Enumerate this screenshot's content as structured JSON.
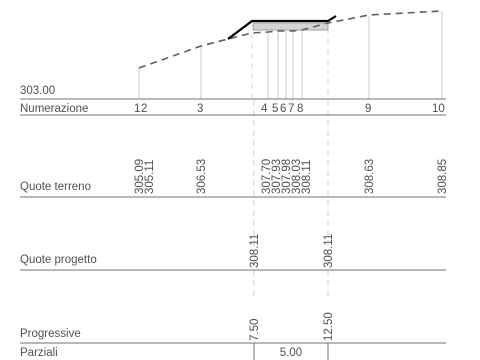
{
  "reference_elevation": "303.00",
  "row_labels": {
    "numerazione": "Numerazione",
    "quote_terreno": "Quote terreno",
    "quote_progetto": "Quote progetto",
    "progressive": "Progressive",
    "parziali": "Parziali"
  },
  "sections": [
    {
      "number": "1",
      "terrain": "305.09",
      "design": "",
      "progressive": ""
    },
    {
      "number": "2",
      "terrain": "305.11",
      "design": "",
      "progressive": ""
    },
    {
      "number": "3",
      "terrain": "306.53",
      "design": "",
      "progressive": ""
    },
    {
      "number": "4",
      "terrain": "307.70",
      "design": "308.11",
      "progressive": "7.50"
    },
    {
      "number": "5",
      "terrain": "307.93",
      "design": "",
      "progressive": ""
    },
    {
      "number": "6",
      "terrain": "307.98",
      "design": "",
      "progressive": ""
    },
    {
      "number": "7",
      "terrain": "308.03",
      "design": "",
      "progressive": ""
    },
    {
      "number": "8",
      "terrain": "308.11",
      "design": "308.11",
      "progressive": "12.50"
    },
    {
      "number": "9",
      "terrain": "308.63",
      "design": "",
      "progressive": ""
    },
    {
      "number": "10",
      "terrain": "308.85",
      "design": "",
      "progressive": ""
    }
  ],
  "partial": "5.00",
  "colors": {
    "terrain_line": "#606060",
    "design_line": "#000000",
    "row_rule": "#707070",
    "station_tick": "#c8c8c8",
    "text": "#505050",
    "platform_fill": "#d4d4d4"
  }
}
